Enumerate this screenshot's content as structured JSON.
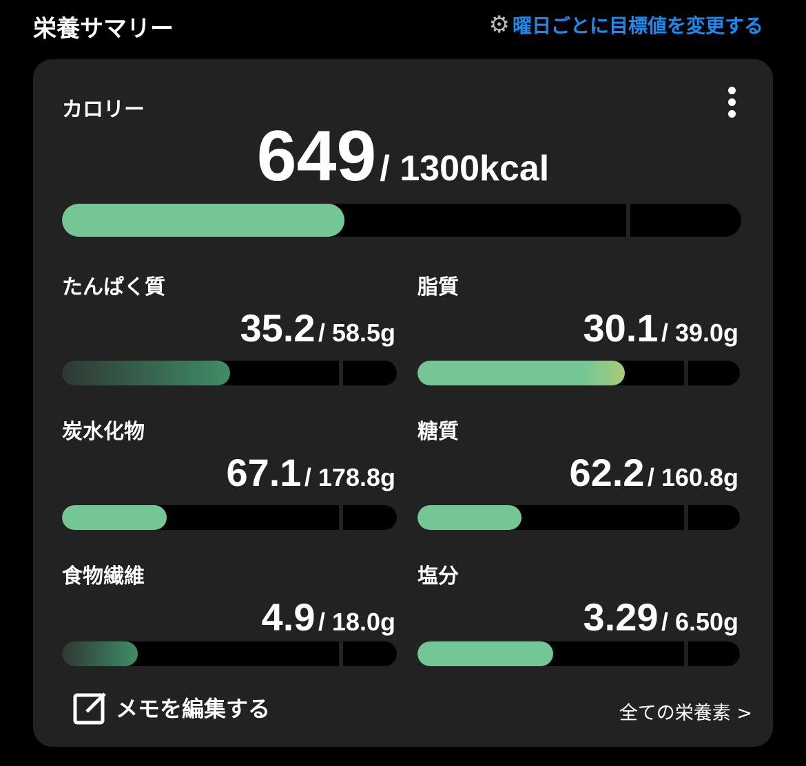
{
  "header": {
    "title": "栄養サマリー",
    "settings_link": "曜日ごとに目標値を変更する",
    "settings_icon": "gear-icon"
  },
  "colors": {
    "accent": "#1a8cf0",
    "bar_fill": "#74c795",
    "card": "#222222"
  },
  "calorie": {
    "label": "カロリー",
    "value": "649",
    "target": "/ 1300kcal",
    "progress": 0.499
  },
  "nutrients": [
    {
      "label": "たんぱく質",
      "value": "35.2",
      "target": "/ 58.5g",
      "progress": 0.602,
      "style": "low"
    },
    {
      "label": "脂質",
      "value": "30.1",
      "target": "/ 39.0g",
      "progress": 0.772,
      "style": "near"
    },
    {
      "label": "炭水化物",
      "value": "67.1",
      "target": "/ 178.8g",
      "progress": 0.375,
      "style": "normal"
    },
    {
      "label": "糖質",
      "value": "62.2",
      "target": "/ 160.8g",
      "progress": 0.387,
      "style": "normal"
    },
    {
      "label": "食物繊維",
      "value": "4.9",
      "target": "/ 18.0g",
      "progress": 0.272,
      "style": "low"
    },
    {
      "label": "塩分",
      "value": "3.29",
      "target": "/ 6.50g",
      "progress": 0.506,
      "style": "normal"
    }
  ],
  "footer": {
    "memo_label": "メモを編集する",
    "all_nutrients": "全ての栄養素 >"
  }
}
